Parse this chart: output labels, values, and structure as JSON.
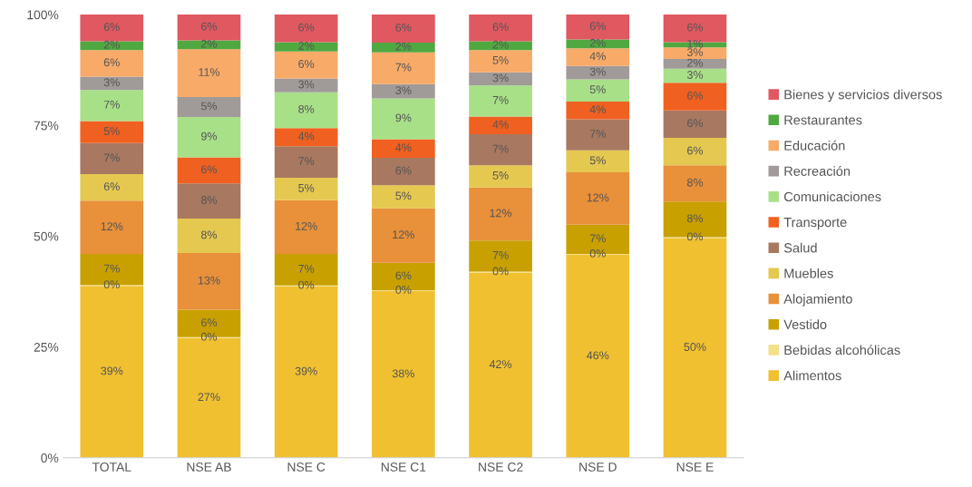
{
  "chart_data": {
    "type": "bar",
    "stacked": true,
    "categories": [
      "TOTAL",
      "NSE AB",
      "NSE C",
      "NSE C1",
      "NSE C2",
      "NSE D",
      "NSE E"
    ],
    "ylim": [
      0,
      100
    ],
    "yticks": [
      {
        "value": 0,
        "label": "0%"
      },
      {
        "value": 25,
        "label": "25%"
      },
      {
        "value": 50,
        "label": "50%"
      },
      {
        "value": 75,
        "label": "75%"
      },
      {
        "value": 100,
        "label": "100%"
      }
    ],
    "legend": "right",
    "grid": false,
    "series": [
      {
        "name": "Alimentos",
        "color": "#f0c030",
        "values": [
          38.8,
          27,
          38.7,
          37.6,
          41.8,
          45.8,
          49.6
        ],
        "value_labels": [
          "39%",
          "27%",
          "39%",
          "38%",
          "42%",
          "46%",
          "50%"
        ]
      },
      {
        "name": "Bebidas alcohólicas",
        "color": "#f5e08a",
        "values": [
          0.2,
          0.2,
          0.2,
          0.2,
          0.2,
          0.2,
          0.2
        ],
        "value_labels": [
          "0%",
          "0%",
          "0%",
          "0%",
          "0%",
          "0%",
          "0%"
        ]
      },
      {
        "name": "Vestido",
        "color": "#c8a000",
        "values": [
          7,
          6.2,
          7.1,
          6.2,
          7,
          6.6,
          8
        ],
        "value_labels": [
          "7%",
          "6%",
          "7%",
          "6%",
          "7%",
          "7%",
          "8%"
        ]
      },
      {
        "name": "Alojamiento",
        "color": "#e8903a",
        "values": [
          12,
          12.8,
          12.1,
          12.3,
          12,
          11.8,
          8.2
        ],
        "value_labels": [
          "12%",
          "13%",
          "12%",
          "12%",
          "12%",
          "12%",
          "8%"
        ]
      },
      {
        "name": "Muebles",
        "color": "#e5c850",
        "values": [
          6,
          7.8,
          5.1,
          5.2,
          5,
          5,
          6.2
        ],
        "value_labels": [
          "6%",
          "8%",
          "5%",
          "5%",
          "5%",
          "5%",
          "6%"
        ]
      },
      {
        "name": "Salud",
        "color": "#a87860",
        "values": [
          7,
          7.9,
          7.1,
          6.2,
          7,
          7,
          6.2
        ],
        "value_labels": [
          "7%",
          "8%",
          "7%",
          "6%",
          "7%",
          "7%",
          "6%"
        ]
      },
      {
        "name": "Transporte",
        "color": "#f06020",
        "values": [
          5,
          5.9,
          4.1,
          4.2,
          4,
          4,
          6.2
        ],
        "value_labels": [
          "5%",
          "6%",
          "4%",
          "4%",
          "4%",
          "4%",
          "6%"
        ]
      },
      {
        "name": "Comunicaciones",
        "color": "#a8e088",
        "values": [
          7,
          9.1,
          8.1,
          9.2,
          7,
          5,
          3.2
        ],
        "value_labels": [
          "7%",
          "9%",
          "8%",
          "9%",
          "7%",
          "5%",
          "3%"
        ]
      },
      {
        "name": "Recreación",
        "color": "#a09a98",
        "values": [
          3,
          4.5,
          3.1,
          3.2,
          3,
          3,
          2.2
        ],
        "value_labels": [
          "3%",
          "5%",
          "3%",
          "3%",
          "3%",
          "3%",
          "2%"
        ]
      },
      {
        "name": "Educación",
        "color": "#f8aa68",
        "values": [
          6,
          10.8,
          6.1,
          7.2,
          5,
          4,
          2.6
        ],
        "value_labels": [
          "6%",
          "11%",
          "6%",
          "7%",
          "5%",
          "4%",
          "3%"
        ]
      },
      {
        "name": "Restaurantes",
        "color": "#50a840",
        "values": [
          2,
          2,
          2.1,
          2.2,
          2,
          2,
          1.2
        ],
        "value_labels": [
          "2%",
          "2%",
          "2%",
          "2%",
          "2%",
          "2%",
          "1%"
        ]
      },
      {
        "name": "Bienes y servicios diversos",
        "color": "#e05860",
        "values": [
          6,
          5.8,
          6.2,
          6.3,
          6,
          5.6,
          6.2
        ],
        "value_labels": [
          "6%",
          "6%",
          "6%",
          "6%",
          "6%",
          "6%",
          "6%"
        ]
      }
    ]
  }
}
